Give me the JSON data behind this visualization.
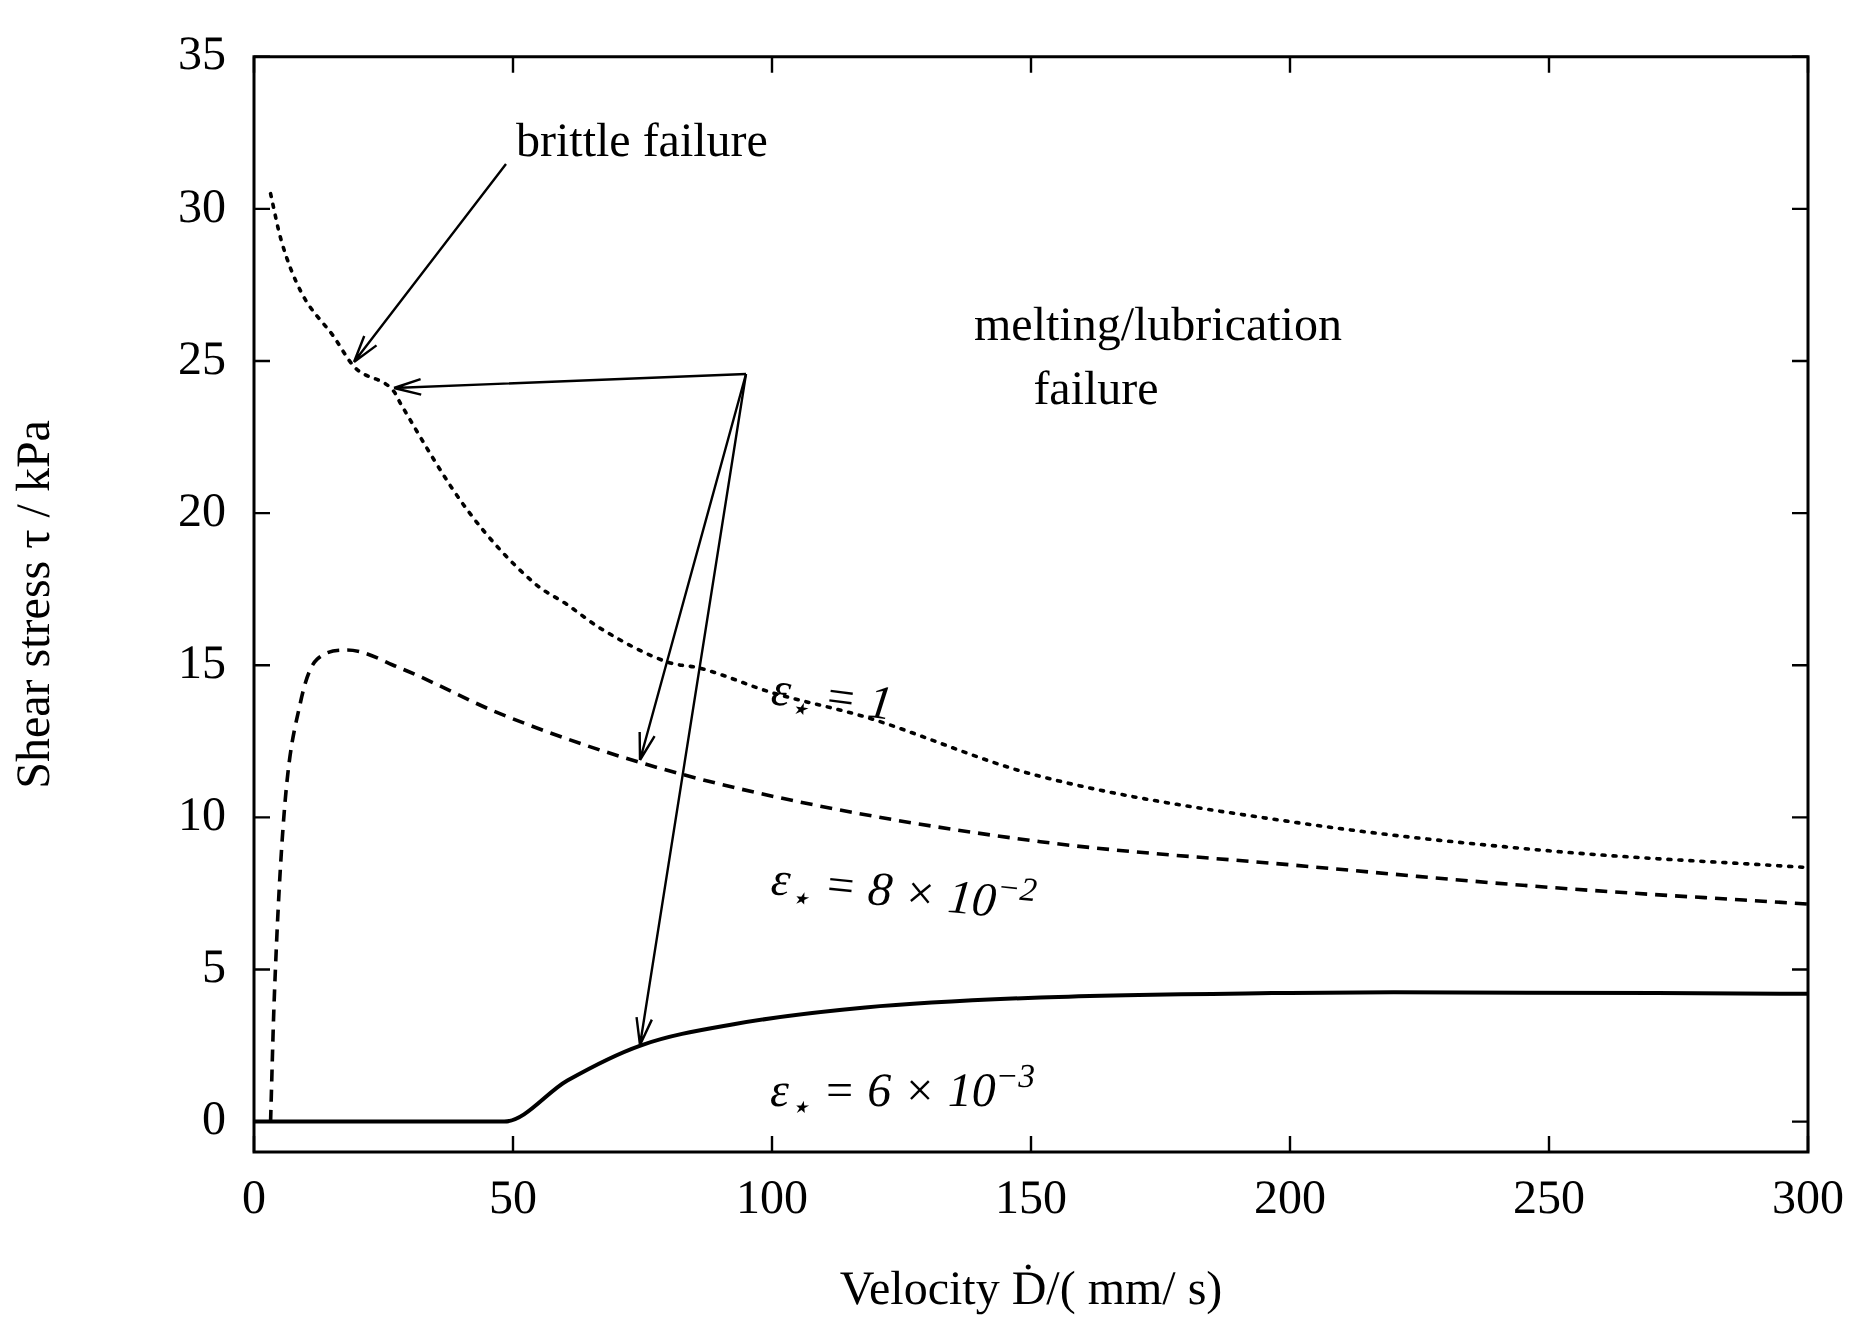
{
  "chart_data": {
    "type": "line",
    "xlabel": "Velocity Ḋ/( mm/ s)",
    "ylabel": "Shear stress τ / kPa",
    "xlim": [
      0,
      300
    ],
    "xticks": [
      0,
      50,
      100,
      150,
      200,
      250,
      300
    ],
    "ylim": [
      -1,
      35
    ],
    "yticks": [
      0,
      5,
      10,
      15,
      20,
      25,
      30,
      35
    ],
    "grid": false,
    "legend": false,
    "marker": "none",
    "series": [
      {
        "name": "ε$_{⋆}$ = 1",
        "color": "#000000",
        "line_style": "dotted",
        "x": [
          3.2,
          5.2,
          9,
          15.4,
          19.4,
          27,
          28.3,
          41.2,
          54.1,
          60.4,
          67,
          79.9,
          86.2,
          100,
          118,
          150.6,
          200,
          250,
          300
        ],
        "values": [
          30.5,
          29,
          27.3,
          25.8,
          24.8,
          24,
          23.6,
          20.1,
          17.7,
          17,
          16.2,
          15.1,
          14.9,
          14.1,
          13.3,
          11.4,
          9.86,
          8.9,
          8.35
        ]
      },
      {
        "name": "ε$_{⋆}$ = 8 × 10$^{−2}$",
        "color": "#000000",
        "line_style": "dashed",
        "x": [
          3.2,
          3.9,
          5.8,
          9,
          12.2,
          18,
          28.3,
          47.6,
          74.6,
          105.5,
          151.8,
          200,
          250,
          300
        ],
        "values": [
          0,
          4,
          10.1,
          13.8,
          15.2,
          15.5,
          14.9,
          13.4,
          11.8,
          10.5,
          9.2,
          8.44,
          7.7,
          7.15
        ]
      },
      {
        "name": "ε$_{⋆}$ = 6 × 10$^{−3}$",
        "color": "#000000",
        "line_style": "solid",
        "x": [
          0,
          48.3,
          60.5,
          74.6,
          92.6,
          118,
          151.8,
          200,
          220,
          300
        ],
        "values": [
          0,
          0,
          1.35,
          2.5,
          3.2,
          3.75,
          4.08,
          4.23,
          4.25,
          4.2
        ]
      }
    ],
    "annotations": [
      "brittle failure",
      "melting/lubrication failure"
    ]
  }
}
